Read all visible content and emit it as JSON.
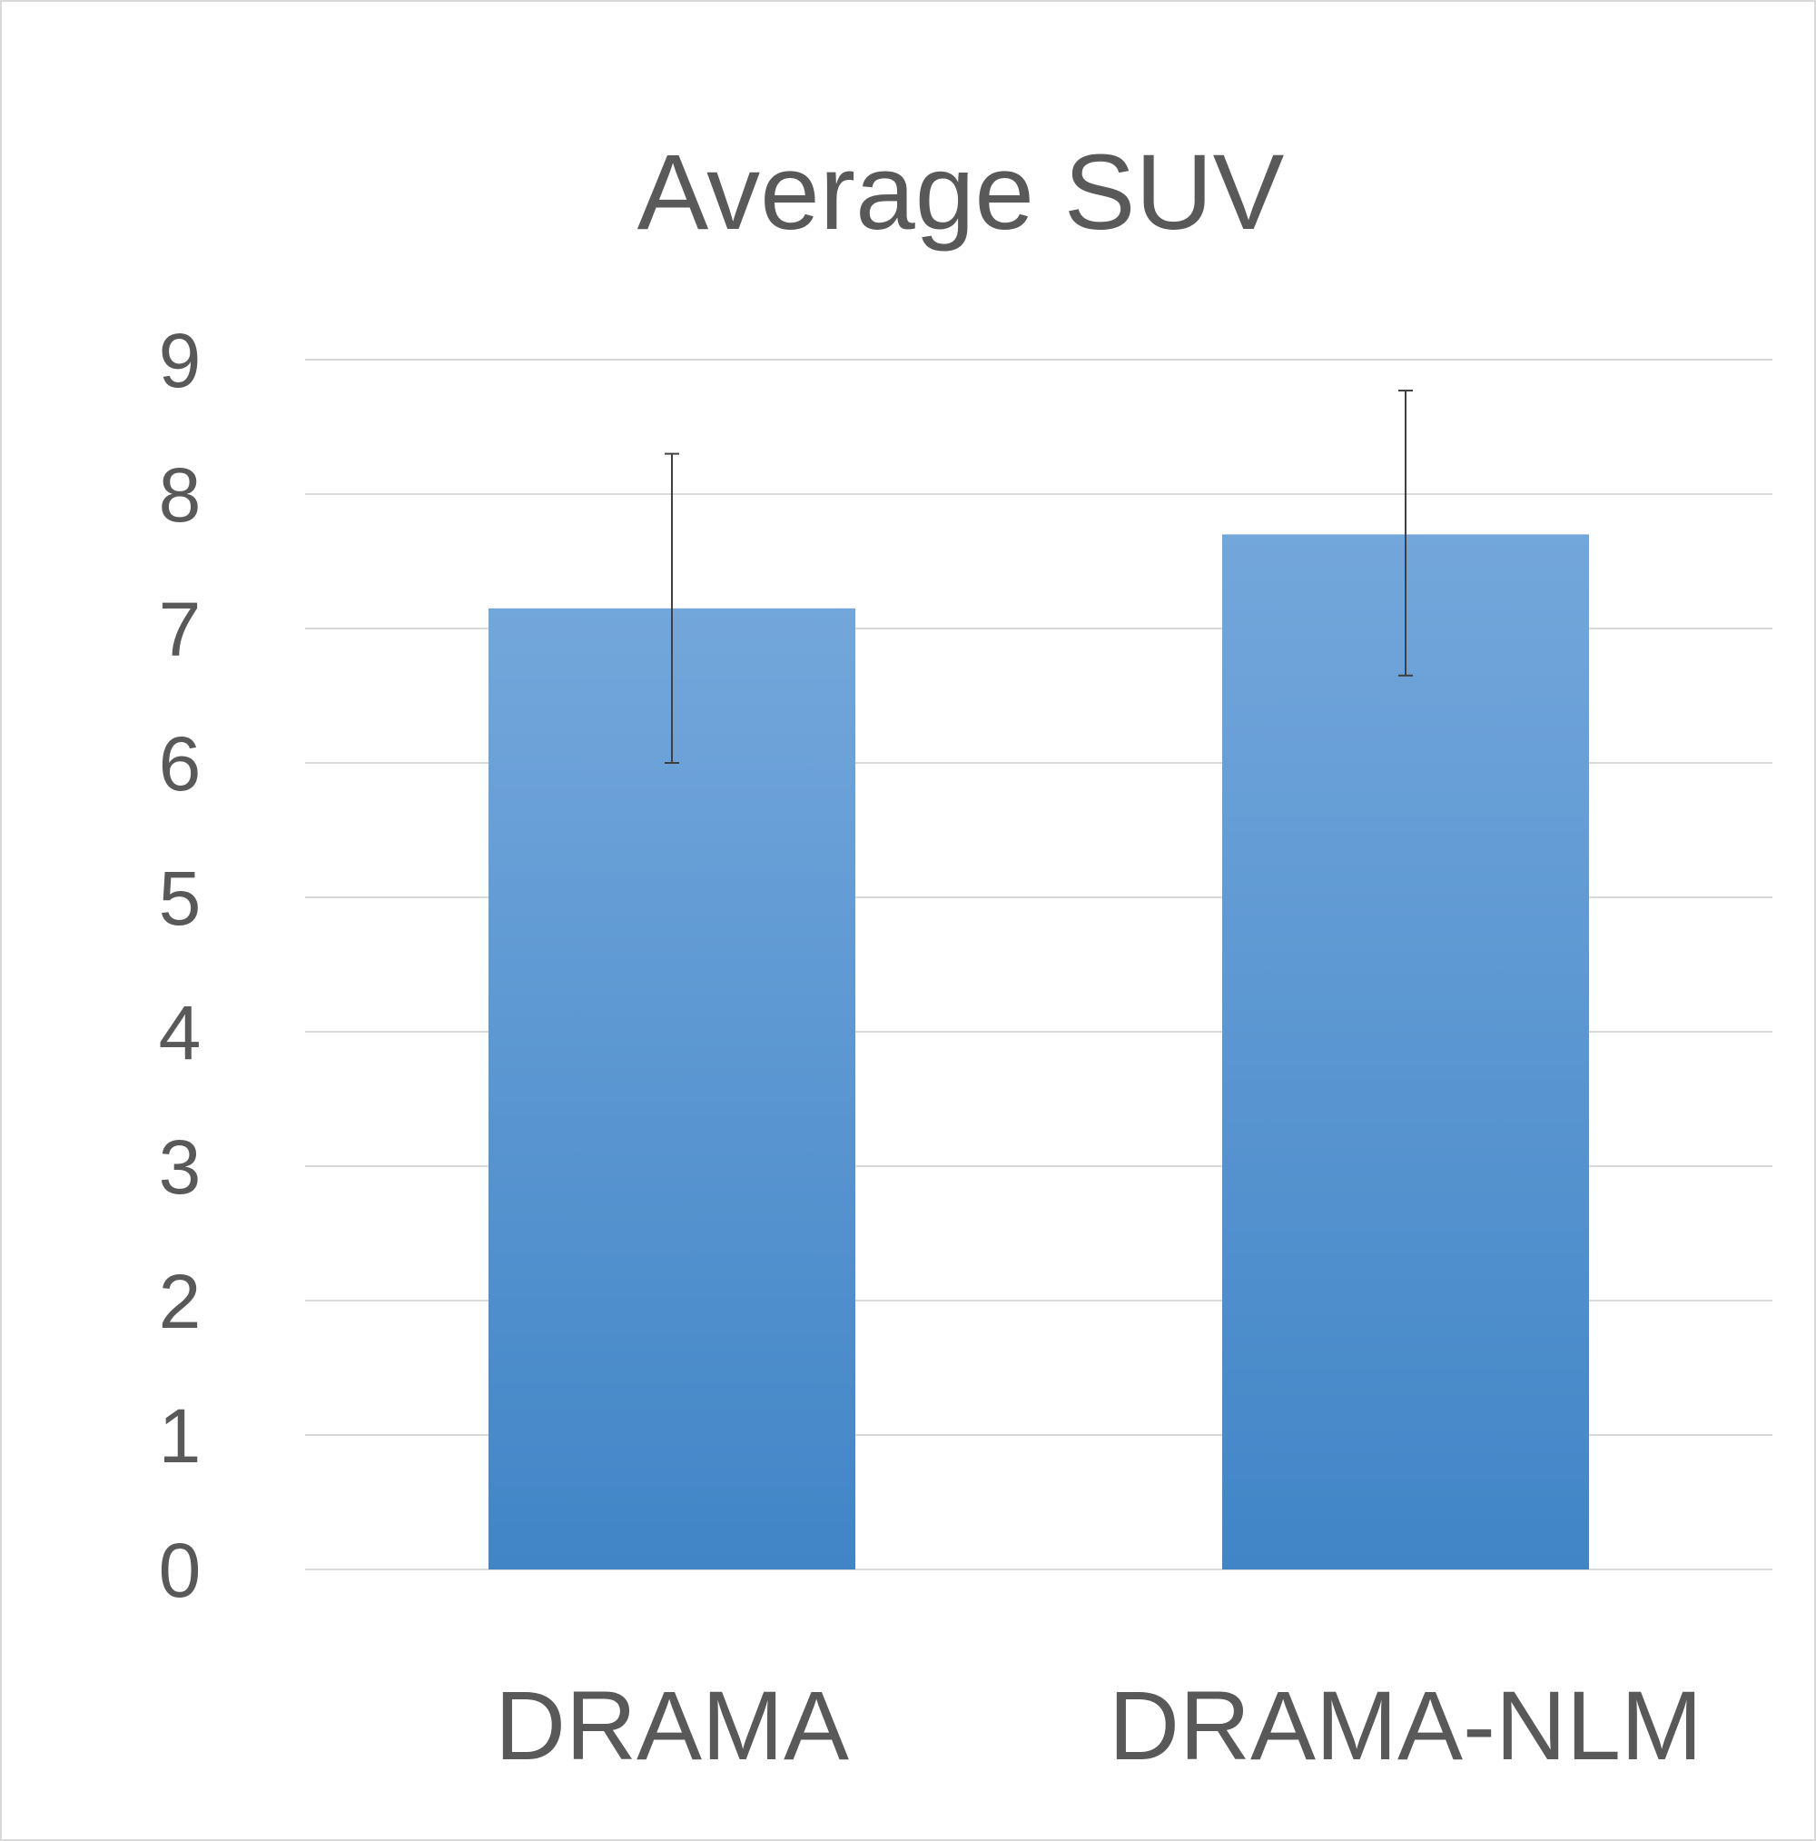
{
  "chart_data": {
    "type": "bar",
    "title": "Average SUV",
    "xlabel": "",
    "ylabel": "",
    "categories": [
      "DRAMA",
      "DRAMA-NLM"
    ],
    "values": [
      7.15,
      7.7
    ],
    "error_bars": {
      "lower": [
        6.0,
        6.65
      ],
      "upper": [
        8.3,
        8.77
      ]
    },
    "ylim": [
      0,
      9
    ],
    "yticks": [
      "0",
      "1",
      "2",
      "3",
      "4",
      "5",
      "6",
      "7",
      "8",
      "9"
    ],
    "grid": true,
    "legend": "none",
    "colors": {
      "bar_top": "#73a7db",
      "bar_bottom": "#4185c7",
      "gridline": "#d9d9d9",
      "text": "#595959",
      "error_bar": "#404040"
    }
  }
}
